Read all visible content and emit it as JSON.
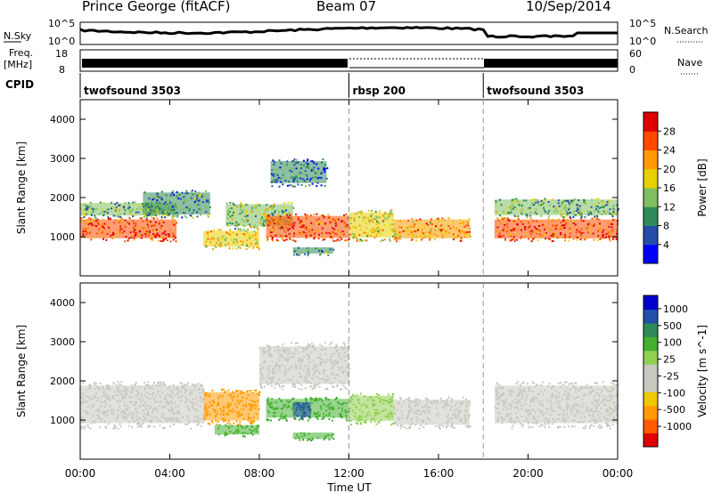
{
  "header": {
    "station": "Prince George (fitACF)",
    "beam": "Beam 07",
    "date": "10/Sep/2014"
  },
  "top_panels": {
    "nsky_label": "N.Sky",
    "nsearch_label": "N.Search",
    "nsky_ticks": [
      "10^5",
      "10^0"
    ],
    "nsearch_ticks": [
      "10^5",
      "10^0"
    ],
    "freq_label": "Freq.",
    "freq_unit": "[MHz]",
    "freq_ticks": [
      "18",
      "8"
    ],
    "nave_label": "Nave",
    "nave_ticks": [
      "60",
      "0"
    ],
    "cpid_label": "CPID",
    "cpid_segments": [
      {
        "label": "twofsound 3503",
        "start_hour": 0
      },
      {
        "label": "rbsp 200",
        "start_hour": 12
      },
      {
        "label": "twofsound 3503",
        "start_hour": 18
      }
    ]
  },
  "time_axis": {
    "ticks": [
      "00:00",
      "04:00",
      "08:00",
      "12:00",
      "16:00",
      "20:00",
      "00:00"
    ],
    "label": "Time UT"
  },
  "colors": {
    "power": [
      "#0000ff",
      "#244ca8",
      "#2e8b57",
      "#7fbf5f",
      "#e8d000",
      "#ff9a00",
      "#ff4a00",
      "#e00000"
    ],
    "velocity": [
      "#e00000",
      "#ff5a00",
      "#ff9a00",
      "#f0c800",
      "#c8c8c0",
      "#c8c8c0",
      "#8fd050",
      "#44b030",
      "#2e8b57",
      "#2050a8",
      "#0000cc"
    ]
  },
  "chart_data": [
    {
      "type": "heatmap",
      "ylabel": "Slant Range [km]",
      "xlabel": "Time UT",
      "x_range_hours": [
        0,
        24
      ],
      "ylim": [
        0,
        4500
      ],
      "y_ticks": [
        1000,
        2000,
        3000,
        4000
      ],
      "colorbar_label": "Power [dB]",
      "colorbar_ticks": [
        "4",
        "8",
        "12",
        "16",
        "20",
        "24",
        "28"
      ],
      "colorbar_range": [
        0,
        32
      ],
      "echo_regions": [
        {
          "t_start": 0.0,
          "t_end": 4.3,
          "r_min": 900,
          "r_max": 1500,
          "power": 26
        },
        {
          "t_start": 0.0,
          "t_end": 4.3,
          "r_min": 1500,
          "r_max": 1900,
          "power": 12
        },
        {
          "t_start": 2.8,
          "t_end": 5.8,
          "r_min": 1500,
          "r_max": 2200,
          "power": 10
        },
        {
          "t_start": 5.5,
          "t_end": 8.0,
          "r_min": 700,
          "r_max": 1200,
          "power": 18
        },
        {
          "t_start": 6.5,
          "t_end": 9.5,
          "r_min": 1200,
          "r_max": 1900,
          "power": 14
        },
        {
          "t_start": 8.5,
          "t_end": 11.0,
          "r_min": 2300,
          "r_max": 3000,
          "power": 8
        },
        {
          "t_start": 8.3,
          "t_end": 12.0,
          "r_min": 900,
          "r_max": 1600,
          "power": 26
        },
        {
          "t_start": 9.5,
          "t_end": 11.3,
          "r_min": 550,
          "r_max": 750,
          "power": 10
        },
        {
          "t_start": 12.0,
          "t_end": 14.0,
          "r_min": 900,
          "r_max": 1700,
          "power": 18
        },
        {
          "t_start": 14.0,
          "t_end": 17.4,
          "r_min": 900,
          "r_max": 1500,
          "power": 22
        },
        {
          "t_start": 18.5,
          "t_end": 24.0,
          "r_min": 900,
          "r_max": 1500,
          "power": 26
        },
        {
          "t_start": 18.5,
          "t_end": 24.0,
          "r_min": 1500,
          "r_max": 2000,
          "power": 12
        }
      ]
    },
    {
      "type": "heatmap",
      "ylabel": "Slant Range [km]",
      "xlabel": "Time UT",
      "x_range_hours": [
        0,
        24
      ],
      "ylim": [
        0,
        4500
      ],
      "y_ticks": [
        1000,
        2000,
        3000,
        4000
      ],
      "colorbar_label": "Velocity [m s^-1]",
      "colorbar_ticks": [
        "1000",
        "500",
        "100",
        "25",
        "-25",
        "-100",
        "-500",
        "-1000"
      ],
      "ground_scatter_color": "#c8c8c0",
      "echo_regions": [
        {
          "t_start": 0.0,
          "t_end": 5.5,
          "r_min": 800,
          "r_max": 2000,
          "velocity": 0
        },
        {
          "t_start": 5.5,
          "t_end": 8.0,
          "r_min": 900,
          "r_max": 1800,
          "velocity": -300
        },
        {
          "t_start": 6.0,
          "t_end": 8.0,
          "r_min": 600,
          "r_max": 900,
          "velocity": 150
        },
        {
          "t_start": 8.0,
          "t_end": 12.0,
          "r_min": 1800,
          "r_max": 3000,
          "velocity": 0
        },
        {
          "t_start": 8.3,
          "t_end": 12.0,
          "r_min": 1000,
          "r_max": 1600,
          "velocity": 150
        },
        {
          "t_start": 9.5,
          "t_end": 10.3,
          "r_min": 1050,
          "r_max": 1500,
          "velocity": 800
        },
        {
          "t_start": 9.5,
          "t_end": 11.3,
          "r_min": 500,
          "r_max": 700,
          "velocity": 200
        },
        {
          "t_start": 12.0,
          "t_end": 14.0,
          "r_min": 900,
          "r_max": 1700,
          "velocity": 50
        },
        {
          "t_start": 14.0,
          "t_end": 17.4,
          "r_min": 800,
          "r_max": 1600,
          "velocity": 0
        },
        {
          "t_start": 18.5,
          "t_end": 24.0,
          "r_min": 800,
          "r_max": 2000,
          "velocity": 0
        }
      ]
    }
  ]
}
